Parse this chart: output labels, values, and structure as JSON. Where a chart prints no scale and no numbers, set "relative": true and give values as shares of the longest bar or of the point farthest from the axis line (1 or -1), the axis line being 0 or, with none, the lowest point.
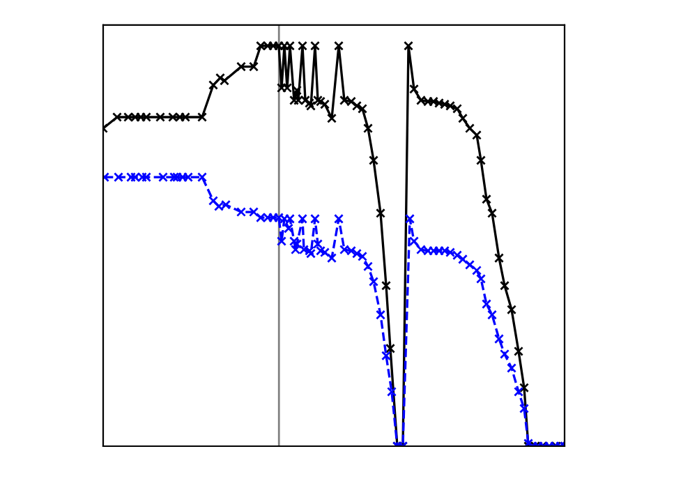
{
  "chart_data": {
    "type": "line",
    "relative": true,
    "grid": false,
    "marker": "cross",
    "categories": [
      null,
      null,
      null,
      null,
      null,
      null,
      null,
      null,
      null,
      null,
      null,
      null,
      null,
      null,
      null,
      null,
      null,
      null,
      null,
      null,
      null,
      null,
      null,
      null,
      null,
      null,
      null,
      null,
      null,
      null,
      null,
      null,
      null,
      null,
      null,
      null,
      null,
      null,
      null,
      null,
      null,
      null,
      null,
      null,
      null,
      null,
      null,
      null,
      null,
      null,
      null,
      null,
      null,
      null,
      null,
      null,
      null,
      null,
      null,
      null,
      null,
      null,
      null,
      null,
      null,
      null,
      null,
      null,
      null,
      null,
      null,
      null,
      null,
      null,
      null,
      null,
      null,
      null,
      null,
      null,
      null,
      null,
      null,
      null,
      null,
      null,
      null,
      null,
      null,
      null,
      null,
      null,
      null,
      null,
      null,
      null,
      null,
      null,
      null,
      null,
      null,
      null,
      null,
      null,
      null,
      null,
      null,
      null,
      null,
      null,
      null,
      null,
      null,
      null,
      null,
      null,
      null,
      null,
      null,
      null,
      null,
      null,
      null,
      null,
      null,
      null,
      null,
      null,
      null,
      null,
      null,
      null,
      null,
      null,
      null,
      null,
      null,
      null,
      null,
      null,
      null,
      null,
      null,
      null,
      null,
      null,
      null,
      null,
      null,
      null,
      null,
      null,
      null,
      null,
      null,
      null,
      null,
      null,
      null,
      null,
      null,
      null,
      null,
      null,
      null,
      null,
      null,
      null,
      null,
      null,
      null,
      null,
      null,
      null,
      null,
      null,
      null,
      null,
      null,
      null,
      null,
      null,
      null,
      null,
      null,
      null,
      null,
      null,
      null,
      null,
      null,
      null,
      null,
      null,
      null,
      null,
      null,
      null,
      null,
      null,
      null,
      null,
      null,
      null,
      null,
      null,
      null,
      null,
      null,
      null,
      null,
      null,
      null,
      null,
      null,
      null,
      null,
      null,
      null,
      null,
      null,
      null,
      null,
      null,
      null,
      null,
      null,
      null,
      null,
      null,
      null,
      null,
      null,
      null,
      null,
      null,
      null,
      null,
      null,
      null,
      null,
      null,
      null,
      null,
      null,
      null,
      null,
      null,
      null,
      null,
      null,
      null,
      null,
      null,
      null,
      null,
      null,
      null,
      null,
      null,
      null,
      null,
      null,
      null,
      null,
      null,
      null,
      null,
      null,
      null,
      null,
      null,
      null,
      null,
      null,
      null,
      null,
      null,
      null,
      null,
      null,
      null,
      null,
      null,
      null,
      null,
      null,
      null,
      null,
      null,
      null,
      null,
      null,
      null,
      null,
      null,
      null,
      null,
      null,
      null,
      null,
      null,
      null,
      null,
      null,
      null,
      null,
      null,
      null,
      null,
      null,
      null,
      null,
      null,
      null,
      null,
      null,
      null,
      null,
      null,
      null,
      null,
      null,
      null,
      null,
      null,
      null,
      null,
      null,
      null,
      null,
      null
    ],
    "series": [
      {
        "color": "#000000",
        "line_style": "solid",
        "values": [
          0.794,
          null,
          null,
          null,
          null,
          null,
          null,
          null,
          null,
          null,
          0.822,
          null,
          null,
          null,
          null,
          null,
          null,
          null,
          0.822,
          null,
          null,
          null,
          null,
          0.822,
          null,
          null,
          null,
          0.822,
          null,
          null,
          null,
          0.822,
          null,
          null,
          null,
          null,
          null,
          null,
          null,
          null,
          null,
          0.822,
          null,
          null,
          null,
          null,
          null,
          null,
          null,
          null,
          0.822,
          null,
          null,
          null,
          null,
          0.822,
          null,
          null,
          null,
          0.822,
          null,
          null,
          null,
          null,
          null,
          null,
          null,
          null,
          null,
          null,
          null,
          0.822,
          null,
          null,
          null,
          null,
          null,
          null,
          null,
          0.902,
          null,
          null,
          null,
          null,
          0.92,
          null,
          null,
          0.913,
          null,
          null,
          null,
          null,
          null,
          null,
          null,
          null,
          null,
          null,
          null,
          0.948,
          null,
          null,
          null,
          null,
          null,
          null,
          null,
          null,
          0.948,
          null,
          null,
          null,
          null,
          1,
          null,
          null,
          null,
          null,
          1,
          null,
          null,
          null,
          1,
          null,
          null,
          null,
          1,
          null,
          0.895,
          null,
          1,
          null,
          0.895,
          null,
          1,
          null,
          null,
          0.864,
          null,
          0.889,
          0.864,
          null,
          null,
          1,
          null,
          0.864,
          null,
          null,
          0.857,
          0.85,
          null,
          null,
          1,
          null,
          0.864,
          null,
          0.861,
          null,
          null,
          0.854,
          null,
          null,
          null,
          null,
          0.819,
          null,
          null,
          null,
          null,
          1,
          null,
          null,
          null,
          0.864,
          null,
          null,
          null,
          null,
          0.861,
          null,
          null,
          null,
          0.85,
          null,
          null,
          null,
          0.843,
          null,
          null,
          null,
          0.794,
          null,
          null,
          null,
          0.714,
          null,
          null,
          null,
          null,
          0.582,
          null,
          null,
          null,
          0.401,
          null,
          null,
          0.244,
          null,
          null,
          null,
          null,
          0,
          null,
          null,
          null,
          0,
          null,
          null,
          null,
          1,
          null,
          null,
          null,
          0.892,
          null,
          null,
          null,
          null,
          0.864,
          null,
          null,
          null,
          null,
          0.861,
          null,
          null,
          null,
          0.861,
          null,
          null,
          null,
          0.857,
          null,
          null,
          null,
          0.854,
          null,
          null,
          null,
          0.85,
          null,
          null,
          null,
          null,
          0.843,
          null,
          null,
          null,
          0.819,
          null,
          null,
          null,
          null,
          0.794,
          null,
          null,
          null,
          null,
          0.777,
          null,
          null,
          0.714,
          null,
          null,
          null,
          0.617,
          null,
          null,
          null,
          0.582,
          null,
          null,
          null,
          null,
          0.47,
          null,
          null,
          null,
          0.401,
          null,
          null,
          null,
          null,
          0.341,
          null,
          null,
          null,
          null,
          0.237,
          null,
          null,
          null,
          0.146,
          null,
          null,
          0,
          null,
          null,
          null,
          null,
          0,
          null,
          null,
          null,
          null,
          0,
          null,
          null,
          null,
          null,
          0,
          null,
          null,
          null,
          null,
          0,
          null,
          null,
          null,
          null,
          null,
          0
        ]
      },
      {
        "color": "#0000ff",
        "line_style": "dashed",
        "values": [
          null,
          0.672,
          null,
          null,
          null,
          null,
          null,
          null,
          null,
          null,
          null,
          0.672,
          null,
          null,
          null,
          null,
          null,
          null,
          null,
          null,
          0.672,
          null,
          null,
          0.672,
          null,
          null,
          null,
          null,
          0.672,
          null,
          null,
          0.672,
          null,
          null,
          null,
          null,
          null,
          null,
          null,
          null,
          null,
          null,
          null,
          0.672,
          null,
          null,
          null,
          null,
          null,
          null,
          null,
          0.672,
          null,
          0.672,
          null,
          null,
          null,
          0.672,
          null,
          null,
          null,
          0.672,
          null,
          null,
          null,
          null,
          null,
          null,
          null,
          null,
          null,
          0.672,
          null,
          null,
          null,
          null,
          null,
          null,
          null,
          0.613,
          null,
          null,
          null,
          0.599,
          null,
          null,
          null,
          null,
          0.603,
          null,
          null,
          null,
          null,
          null,
          null,
          null,
          null,
          null,
          null,
          0.585,
          null,
          null,
          null,
          null,
          null,
          null,
          null,
          null,
          0.585,
          null,
          null,
          null,
          null,
          0.571,
          null,
          null,
          null,
          null,
          0.571,
          null,
          null,
          null,
          0.571,
          null,
          null,
          null,
          0.571,
          null,
          0.512,
          null,
          0.568,
          null,
          null,
          0.544,
          0.568,
          null,
          null,
          0.512,
          0.491,
          0.505,
          null,
          null,
          null,
          0.568,
          0.491,
          null,
          null,
          null,
          0.488,
          0.481,
          null,
          null,
          0.568,
          null,
          0.505,
          null,
          0.488,
          null,
          null,
          0.484,
          null,
          null,
          null,
          null,
          0.47,
          null,
          null,
          null,
          null,
          0.568,
          null,
          null,
          null,
          0.491,
          null,
          null,
          null,
          null,
          0.488,
          null,
          null,
          null,
          0.481,
          null,
          null,
          null,
          0.474,
          null,
          null,
          null,
          0.449,
          null,
          null,
          null,
          0.411,
          null,
          null,
          null,
          null,
          0.328,
          null,
          null,
          null,
          0.226,
          null,
          null,
          null,
          0.136,
          null,
          null,
          null,
          0,
          null,
          null,
          null,
          0,
          null,
          null,
          null,
          null,
          0.568,
          null,
          null,
          0.512,
          null,
          null,
          null,
          null,
          0.491,
          null,
          null,
          null,
          null,
          0.488,
          null,
          null,
          null,
          0.488,
          null,
          null,
          null,
          0.488,
          null,
          null,
          null,
          0.488,
          null,
          null,
          null,
          0.484,
          null,
          null,
          null,
          null,
          0.477,
          null,
          null,
          null,
          0.467,
          null,
          null,
          null,
          null,
          0.453,
          null,
          null,
          null,
          null,
          0.439,
          null,
          null,
          0.418,
          null,
          null,
          null,
          0.355,
          null,
          null,
          null,
          0.328,
          null,
          null,
          null,
          null,
          0.268,
          null,
          null,
          null,
          0.23,
          null,
          null,
          null,
          null,
          0.195,
          null,
          null,
          null,
          null,
          0.136,
          null,
          null,
          null,
          0.094,
          null,
          null,
          0.007,
          null,
          null,
          0,
          null,
          null,
          null,
          0,
          null,
          null,
          null,
          0,
          null,
          null,
          null,
          0,
          null,
          null,
          null,
          0,
          null,
          null,
          null,
          0,
          null,
          null,
          0
        ]
      }
    ]
  }
}
